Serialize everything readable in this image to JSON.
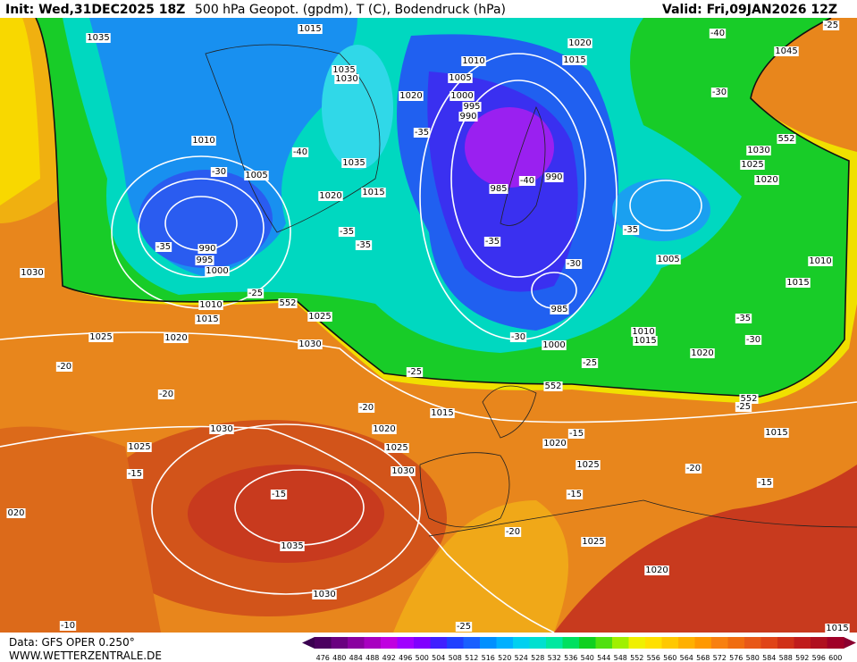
{
  "header": {
    "init": "Init: Wed,31DEC2025 18Z",
    "title": "500 hPa Geopot. (gpdm), T (C), Bodendruck (hPa)",
    "valid": "Valid: Fri,09JAN2026 12Z"
  },
  "footer": {
    "data": "Data: GFS OPER 0.250°",
    "site": "WWW.WETTERZENTRALE.DE"
  },
  "colorbar": {
    "labels": [
      "476",
      "480",
      "484",
      "488",
      "492",
      "496",
      "500",
      "504",
      "508",
      "512",
      "516",
      "520",
      "524",
      "528",
      "532",
      "536",
      "540",
      "544",
      "548",
      "552",
      "556",
      "560",
      "564",
      "568",
      "572",
      "576",
      "580",
      "584",
      "588",
      "592",
      "596",
      "600"
    ],
    "colors": [
      "#4b0060",
      "#6a0080",
      "#8a00a0",
      "#a800c0",
      "#c000e0",
      "#a000ff",
      "#8000ff",
      "#4020ff",
      "#2040ff",
      "#1a60ff",
      "#0090ff",
      "#00b0ff",
      "#00d0f0",
      "#00e0d0",
      "#00e8a0",
      "#00e060",
      "#10d020",
      "#50e010",
      "#a0f000",
      "#f0f000",
      "#ffe000",
      "#ffc800",
      "#ffb000",
      "#ff9800",
      "#f88010",
      "#f06c10",
      "#e85818",
      "#e04418",
      "#d03018",
      "#c01c1c",
      "#b01020",
      "#a00028"
    ]
  },
  "map": {
    "contour_labels": [
      "1035",
      "1015",
      "1020",
      "1010",
      "1015",
      "1045",
      "1035",
      "1030",
      "1020",
      "1005",
      "1000",
      "995",
      "990",
      "-35",
      "-40",
      "-25",
      "-30",
      "1010",
      "552",
      "1030",
      "1025",
      "1020",
      "-40",
      "1035",
      "-30",
      "1005",
      "1020",
      "1015",
      "985",
      "-40",
      "990",
      "-35",
      "990",
      "995",
      "1000",
      "-35",
      "-35",
      "-35",
      "-35",
      "1005",
      "-30",
      "1030",
      "1010",
      "1015",
      "-25",
      "552",
      "1010",
      "1015",
      "985",
      "1025",
      "-35",
      "1025",
      "1020",
      "-30",
      "1010",
      "1015",
      "-30",
      "1030",
      "1000",
      "1020",
      "-25",
      "-20",
      "-25",
      "552",
      "-20",
      "552",
      "-25",
      "-20",
      "1015",
      "1020",
      "1030",
      "-15",
      "1020",
      "1015",
      "1025",
      "1025",
      "-15",
      "1030",
      "1025",
      "-20",
      "-15",
      "-15",
      "-15",
      "020",
      "-20",
      "1035",
      "1025",
      "1020",
      "1030",
      "-10",
      "-25",
      "1015"
    ]
  }
}
